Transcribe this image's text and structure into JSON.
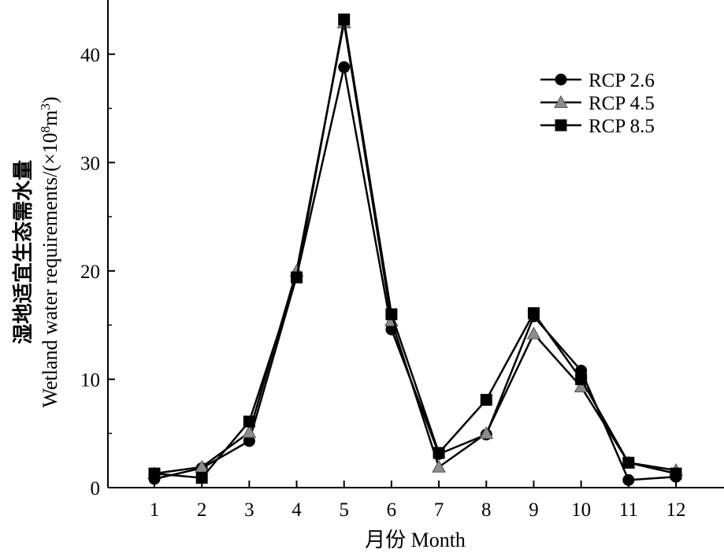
{
  "chart_data": {
    "type": "line",
    "title": "",
    "xlabel": "月份 Month",
    "ylabel_cn": "湿地适宜生态需水量",
    "ylabel_en_base": "Wetland water requirements/(×10",
    "ylabel_en_sup": "8",
    "ylabel_en_unit": "m",
    "ylabel_en_sup2": "3",
    "ylabel_en_close": ")",
    "x": [
      1,
      2,
      3,
      4,
      5,
      6,
      7,
      8,
      9,
      10,
      11,
      12
    ],
    "x_tick_labels": [
      "1",
      "2",
      "3",
      "4",
      "5",
      "6",
      "7",
      "8",
      "9",
      "10",
      "11",
      "12"
    ],
    "ylim": [
      0,
      45
    ],
    "y_ticks": [
      0,
      10,
      20,
      30,
      40
    ],
    "y_tick_labels": [
      "0",
      "10",
      "20",
      "30",
      "40"
    ],
    "grid": false,
    "legend_position": "top-right",
    "series": [
      {
        "name": "RCP 2.6",
        "marker": "circle",
        "marker_color": "#000000",
        "values": [
          0.8,
          1.8,
          4.3,
          19.5,
          38.8,
          14.6,
          3.1,
          4.9,
          15.8,
          10.8,
          0.7,
          1.0
        ]
      },
      {
        "name": "RCP 4.5",
        "marker": "triangle",
        "marker_color": "#8c8c8c",
        "values": [
          1.3,
          1.9,
          5.1,
          20.0,
          42.9,
          15.4,
          1.9,
          5.0,
          14.2,
          9.3,
          2.3,
          1.6
        ]
      },
      {
        "name": "RCP 8.5",
        "marker": "square",
        "marker_color": "#000000",
        "values": [
          1.3,
          0.9,
          6.1,
          19.4,
          43.2,
          16.0,
          3.2,
          8.1,
          16.1,
          10.0,
          2.3,
          1.3
        ]
      }
    ]
  }
}
